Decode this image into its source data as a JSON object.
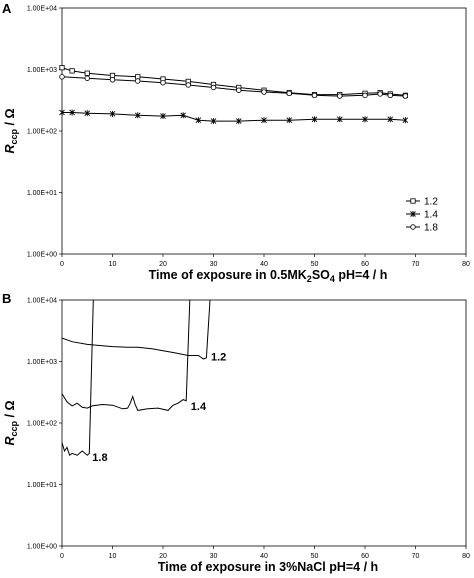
{
  "chart_data": [
    {
      "panel": "A",
      "type": "line",
      "title": "",
      "xlabel_main": "Time of exposure in 0.5MK",
      "xlabel_sub": "2",
      "xlabel_mid": "SO",
      "xlabel_sub2": "4",
      "xlabel_end": " pH=4 / h",
      "ylabel_main": "R",
      "ylabel_sub": "ccp",
      "ylabel_unit": " / Ω",
      "xlim": [
        0,
        80
      ],
      "ylim": [
        1,
        10000
      ],
      "yscale": "log",
      "x_ticks": [
        "0",
        "10",
        "20",
        "30",
        "40",
        "50",
        "60",
        "70",
        "80"
      ],
      "y_ticks": [
        "1.00E+00",
        "1.00E+01",
        "1.00E+02",
        "1.00E+03",
        "1.00E+04"
      ],
      "legend_position": "right",
      "series": [
        {
          "name": "1.2",
          "marker": "square",
          "x": [
            0,
            2,
            5,
            10,
            15,
            20,
            25,
            30,
            35,
            40,
            45,
            50,
            55,
            60,
            63,
            65,
            68
          ],
          "y": [
            1070,
            950,
            870,
            800,
            760,
            700,
            640,
            570,
            510,
            460,
            420,
            390,
            390,
            410,
            420,
            400,
            380
          ]
        },
        {
          "name": "1.4",
          "marker": "star",
          "x": [
            0,
            2,
            5,
            10,
            15,
            20,
            24,
            27,
            30,
            35,
            40,
            45,
            50,
            55,
            60,
            65,
            68
          ],
          "y": [
            200,
            200,
            195,
            190,
            180,
            175,
            180,
            150,
            145,
            145,
            150,
            150,
            155,
            155,
            155,
            155,
            150
          ]
        },
        {
          "name": "1.8",
          "marker": "circle",
          "x": [
            0,
            5,
            10,
            15,
            20,
            25,
            30,
            35,
            40,
            45,
            50,
            55,
            60,
            63,
            65,
            68
          ],
          "y": [
            760,
            720,
            680,
            650,
            610,
            560,
            510,
            460,
            430,
            410,
            380,
            370,
            380,
            400,
            380,
            370
          ]
        }
      ]
    },
    {
      "panel": "B",
      "type": "line",
      "title": "",
      "xlabel_main": "Time of exposure in 3%NaCl pH=4  / h",
      "ylabel_main": "R",
      "ylabel_sub": "ccp",
      "ylabel_unit": " / Ω",
      "xlim": [
        0,
        80
      ],
      "ylim": [
        1,
        10000
      ],
      "yscale": "log",
      "x_ticks": [
        "0",
        "10",
        "20",
        "30",
        "40",
        "50",
        "60",
        "70",
        "80"
      ],
      "y_ticks": [
        "1.00E+00",
        "1.00E+01",
        "1.00E+02",
        "1.00E+03",
        "1.00E+04"
      ],
      "series": [
        {
          "name": "1.2",
          "x": [
            0,
            2,
            5,
            8,
            10,
            13,
            15,
            18,
            20,
            22,
            25,
            27,
            28,
            28.6,
            29.3
          ],
          "y": [
            2400,
            2100,
            1900,
            1800,
            1750,
            1700,
            1700,
            1600,
            1500,
            1400,
            1250,
            1250,
            1100,
            1150,
            10000
          ]
        },
        {
          "name": "1.4",
          "x": [
            0,
            1,
            2,
            3,
            4,
            5,
            6,
            8,
            10,
            12,
            13,
            13.5,
            14,
            14.5,
            15,
            17,
            19,
            21,
            22,
            23,
            24,
            24.6,
            25.3
          ],
          "y": [
            300,
            220,
            190,
            210,
            180,
            175,
            190,
            200,
            195,
            170,
            175,
            210,
            270,
            200,
            160,
            170,
            175,
            160,
            195,
            210,
            240,
            230,
            10000
          ]
        },
        {
          "name": "1.8",
          "x": [
            0,
            0.5,
            1,
            1.5,
            2,
            3,
            4,
            5,
            5.4,
            6.2
          ],
          "y": [
            48,
            35,
            40,
            30,
            32,
            30,
            35,
            30,
            32,
            10000
          ]
        }
      ],
      "annotations": [
        {
          "text": "1.2",
          "x": 29.5,
          "y": 1200
        },
        {
          "text": "1.4",
          "x": 25.5,
          "y": 190
        },
        {
          "text": "1.8",
          "x": 6,
          "y": 28
        }
      ]
    }
  ],
  "panels": {
    "a": "A",
    "b": "B"
  }
}
